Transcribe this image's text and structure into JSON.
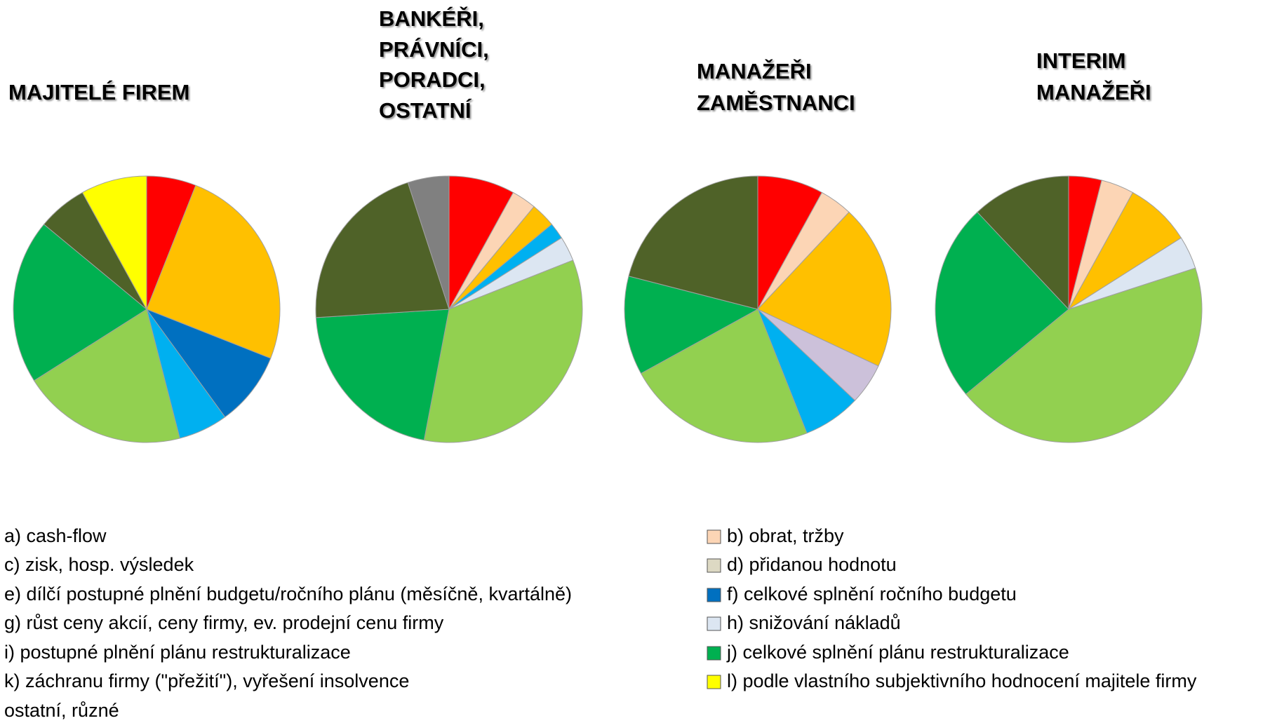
{
  "chart_data": [
    {
      "type": "pie",
      "title": [
        "MAJITELÉ FIREM"
      ],
      "values": [
        6,
        null,
        25,
        null,
        null,
        9,
        6,
        null,
        20,
        20,
        6,
        8,
        null
      ]
    },
    {
      "type": "pie",
      "title": [
        "BANKÉŘI,",
        "PRÁVNÍCI,",
        "PORADCI,",
        "OSTATNÍ"
      ],
      "values": [
        8,
        3,
        3,
        null,
        null,
        null,
        2,
        3,
        34,
        21,
        21,
        null,
        5
      ]
    },
    {
      "type": "pie",
      "title": [
        "MANAŽEŘI",
        "ZAMĚSTNANCI"
      ],
      "values": [
        8,
        4,
        20,
        null,
        5,
        null,
        7,
        null,
        23,
        12,
        21,
        null,
        null
      ]
    },
    {
      "type": "pie",
      "title": [
        "INTERIM",
        "MANAŽEŘI"
      ],
      "values": [
        4,
        4,
        8,
        null,
        null,
        null,
        null,
        4,
        44,
        24,
        12,
        null,
        null
      ]
    }
  ],
  "legend": [
    {
      "name": "a) cash-flow",
      "color": "#ff0000"
    },
    {
      "name": "b) obrat, tržby",
      "color": "#fcd5b5"
    },
    {
      "name": "c) zisk, hosp. výsledek",
      "color": "#ffc000"
    },
    {
      "name": "d) přidanou hodnotu",
      "color": "#ddd9c3"
    },
    {
      "name": "e) dílčí postupné plnění budgetu/ročního plánu (měsíčně, kvartálně)",
      "color": "#ccc1da"
    },
    {
      "name": "f) celkové splnění ročního budgetu",
      "color": "#0070c0"
    },
    {
      "name": "g) růst ceny akcií, ceny firmy, ev. prodejní cenu firmy",
      "color": "#00b0f0"
    },
    {
      "name": "h) snižování nákladů",
      "color": "#dce6f2"
    },
    {
      "name": "i) postupné plnění plánu restrukturalizace",
      "color": "#92d050"
    },
    {
      "name": "j) celkové splnění plánu restrukturalizace",
      "color": "#00b050"
    },
    {
      "name": "k) záchranu firmy (\"přežití\"), vyřešení insolvence",
      "color": "#4f6228"
    },
    {
      "name": "l) podle vlastního subjektivního hodnocení majitele firmy",
      "color": "#ffff00"
    },
    {
      "name": "ostatní, různé",
      "color": "#808080"
    }
  ]
}
